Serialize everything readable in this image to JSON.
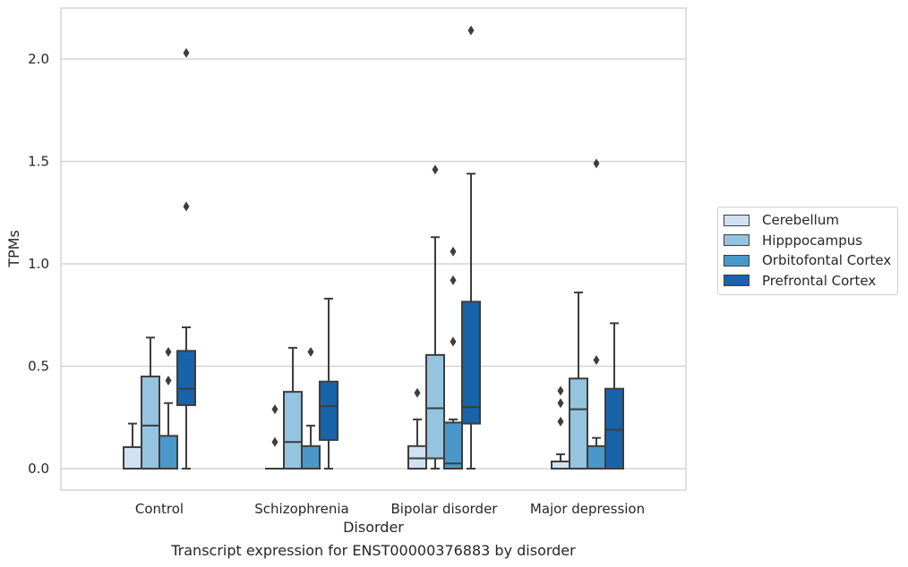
{
  "caption": "Transcript expression for ENST00000376883 by disorder",
  "chart_data": {
    "type": "box",
    "title": "",
    "xlabel": "Disorder",
    "ylabel": "TPMs",
    "ylim": [
      -0.1,
      2.25
    ],
    "yticks": [
      0.0,
      0.5,
      1.0,
      1.5,
      2.0
    ],
    "ytick_labels": [
      "0.0",
      "0.5",
      "1.0",
      "1.5",
      "2.0"
    ],
    "grid": true,
    "legend_position": "right",
    "categories": [
      "Control",
      "Schizophrenia",
      "Bipolar disorder",
      "Major depression"
    ],
    "series": [
      {
        "name": "Cerebellum",
        "color": "#d0e1f2",
        "boxes": [
          {
            "whislo": 0.0,
            "q1": 0.0,
            "med": 0.0,
            "q3": 0.105,
            "whishi": 0.22,
            "fliers": []
          },
          {
            "whislo": 0.0,
            "q1": 0.0,
            "med": 0.0,
            "q3": 0.0,
            "whishi": 0.0,
            "fliers": [
              0.13,
              0.29
            ]
          },
          {
            "whislo": 0.0,
            "q1": 0.0,
            "med": 0.05,
            "q3": 0.11,
            "whishi": 0.24,
            "fliers": [
              0.37
            ]
          },
          {
            "whislo": 0.0,
            "q1": 0.0,
            "med": 0.0,
            "q3": 0.035,
            "whishi": 0.07,
            "fliers": [
              0.23,
              0.32,
              0.38
            ]
          }
        ]
      },
      {
        "name": "Hipppocampus",
        "color": "#94c4df",
        "boxes": [
          {
            "whislo": 0.0,
            "q1": 0.0,
            "med": 0.21,
            "q3": 0.45,
            "whishi": 0.64,
            "fliers": []
          },
          {
            "whislo": 0.0,
            "q1": 0.0,
            "med": 0.13,
            "q3": 0.375,
            "whishi": 0.59,
            "fliers": []
          },
          {
            "whislo": 0.0,
            "q1": 0.05,
            "med": 0.295,
            "q3": 0.555,
            "whishi": 1.13,
            "fliers": [
              1.46
            ]
          },
          {
            "whislo": 0.0,
            "q1": 0.0,
            "med": 0.29,
            "q3": 0.44,
            "whishi": 0.86,
            "fliers": []
          }
        ]
      },
      {
        "name": "Orbitofontal Cortex",
        "color": "#4a98c9",
        "boxes": [
          {
            "whislo": 0.0,
            "q1": 0.0,
            "med": 0.0,
            "q3": 0.16,
            "whishi": 0.32,
            "fliers": [
              0.43,
              0.57
            ]
          },
          {
            "whislo": 0.0,
            "q1": 0.0,
            "med": 0.0,
            "q3": 0.11,
            "whishi": 0.21,
            "fliers": [
              0.57
            ]
          },
          {
            "whislo": 0.0,
            "q1": 0.0,
            "med": 0.025,
            "q3": 0.225,
            "whishi": 0.24,
            "fliers": [
              0.62,
              0.92,
              1.06
            ]
          },
          {
            "whislo": 0.0,
            "q1": 0.0,
            "med": 0.0,
            "q3": 0.11,
            "whishi": 0.15,
            "fliers": [
              0.53,
              1.49
            ]
          }
        ]
      },
      {
        "name": "Prefrontal Cortex",
        "color": "#1764ab",
        "boxes": [
          {
            "whislo": 0.0,
            "q1": 0.31,
            "med": 0.39,
            "q3": 0.575,
            "whishi": 0.69,
            "fliers": [
              1.28,
              2.03
            ]
          },
          {
            "whislo": 0.0,
            "q1": 0.14,
            "med": 0.305,
            "q3": 0.425,
            "whishi": 0.83,
            "fliers": []
          },
          {
            "whislo": 0.0,
            "q1": 0.22,
            "med": 0.3,
            "q3": 0.815,
            "whishi": 1.44,
            "fliers": [
              2.14
            ]
          },
          {
            "whislo": 0.0,
            "q1": 0.0,
            "med": 0.19,
            "q3": 0.39,
            "whishi": 0.71,
            "fliers": []
          }
        ]
      }
    ]
  }
}
